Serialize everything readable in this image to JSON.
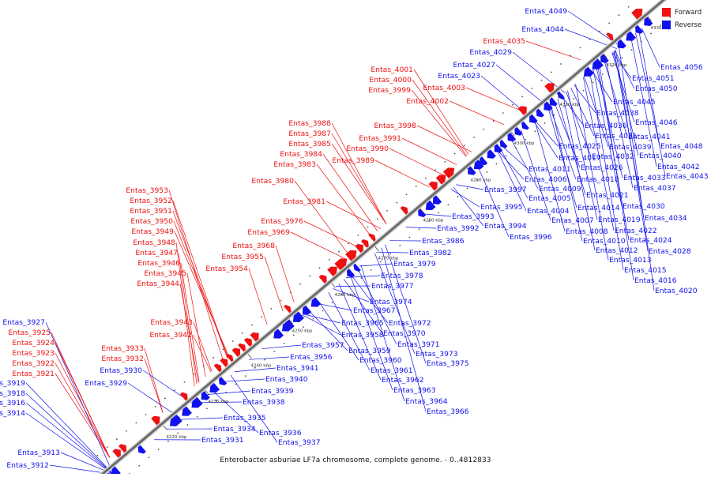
{
  "legend": {
    "forward_label": "Forward",
    "reverse_label": "Reverse",
    "forward_color": "#ee1111",
    "reverse_color": "#1111ee"
  },
  "caption": "Enterobacter asburiae LF7a chromosome, complete genome. - 0..4812833",
  "scale_labels": [
    "4220 kbp",
    "4230 kbp",
    "4240 kbp",
    "4250 kbp",
    "4260 kbp",
    "4270 kbp",
    "4280 kbp",
    "4290 kbp",
    "4300 kbp",
    "4310 kbp",
    "4320 kbp",
    "4330 kbp"
  ],
  "labels_forward": [
    "Entas_3921",
    "Entas_3922",
    "Entas_3923",
    "Entas_3924",
    "Entas_3925",
    "Entas_3932",
    "Entas_3933",
    "Entas_3942",
    "Entas_3943",
    "Entas_3944",
    "Entas_3945",
    "Entas_3946",
    "Entas_3947",
    "Entas_3948",
    "Entas_3949",
    "Entas_3950",
    "Entas_3951",
    "Entas_3952",
    "Entas_3953",
    "Entas_3954",
    "Entas_3955",
    "Entas_3968",
    "Entas_3969",
    "Entas_3976",
    "Entas_3980",
    "Entas_3981",
    "Entas_3983",
    "Entas_3984",
    "Entas_3985",
    "Entas_3987",
    "Entas_3988",
    "Entas_3989",
    "Entas_3990",
    "Entas_3991",
    "Entas_3998",
    "Entas_3999",
    "Entas_4000",
    "Entas_4001",
    "Entas_4002",
    "Entas_4003",
    "Entas_4035"
  ],
  "labels_reverse_left": [
    "Entas_3927",
    "Entas_3919",
    "Entas_3918",
    "Entas_3916",
    "Entas_3914",
    "Entas_3930",
    "Entas_3929",
    "Entas_3913",
    "Entas_3912",
    "Entas_4049",
    "Entas_4044",
    "Entas_4029",
    "Entas_4027",
    "Entas_4023"
  ],
  "labels_reverse_below": [
    "Entas_3941",
    "Entas_3940",
    "Entas_3939",
    "Entas_3938",
    "Entas_3935",
    "Entas_3934",
    "Entas_3931",
    "Entas_3936",
    "Entas_3937",
    "Entas_3956",
    "Entas_3957",
    "Entas_3958",
    "Entas_3959",
    "Entas_3960",
    "Entas_3961",
    "Entas_3962",
    "Entas_3963",
    "Entas_3964",
    "Entas_3966",
    "Entas_3965",
    "Entas_3967",
    "Entas_3970",
    "Entas_3971",
    "Entas_3972",
    "Entas_3973",
    "Entas_3975",
    "Entas_3974",
    "Entas_3977",
    "Entas_3978",
    "Entas_3979",
    "Entas_3982",
    "Entas_3986",
    "Entas_3992",
    "Entas_3993",
    "Entas_3994",
    "Entas_3995",
    "Entas_3996",
    "Entas_3997",
    "Entas_4004",
    "Entas_4005",
    "Entas_4006",
    "Entas_4007",
    "Entas_4008",
    "Entas_4009",
    "Entas_4010",
    "Entas_4011",
    "Entas_4012",
    "Entas_4013",
    "Entas_4014",
    "Entas_4015",
    "Entas_4016",
    "Entas_4017",
    "Entas_4018",
    "Entas_4019",
    "Entas_4020",
    "Entas_4021",
    "Entas_4022",
    "Entas_4024",
    "Entas_4025",
    "Entas_4026",
    "Entas_4028",
    "Entas_4030",
    "Entas_4031",
    "Entas_4032",
    "Entas_4033",
    "Entas_4034",
    "Entas_4036",
    "Entas_4037",
    "Entas_4038",
    "Entas_4039",
    "Entas_4040",
    "Entas_4041",
    "Entas_4042",
    "Entas_4043",
    "Entas_4045",
    "Entas_4046",
    "Entas_4048",
    "Entas_4050",
    "Entas_4051",
    "Entas_4056"
  ]
}
